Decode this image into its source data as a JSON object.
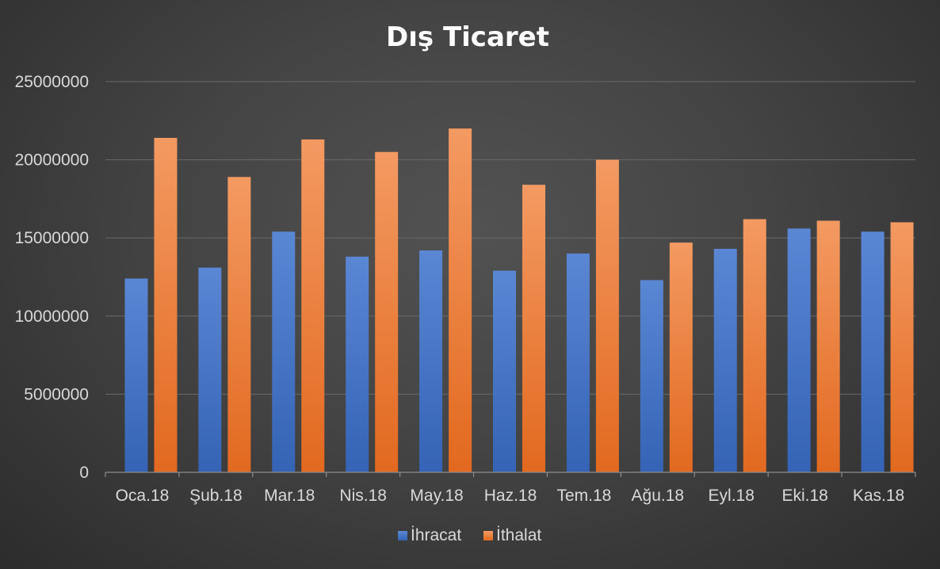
{
  "chart_data": {
    "type": "bar",
    "title": "Dış Ticaret",
    "xlabel": "",
    "ylabel": "",
    "categories": [
      "Oca.18",
      "Şub.18",
      "Mar.18",
      "Nis.18",
      "May.18",
      "Haz.18",
      "Tem.18",
      "Ağu.18",
      "Eyl.18",
      "Eki.18",
      "Kas.18"
    ],
    "series": [
      {
        "name": "İhracat",
        "color": "#4472c4",
        "values": [
          12400000,
          13100000,
          15400000,
          13800000,
          14200000,
          12900000,
          14000000,
          12300000,
          14300000,
          15600000,
          15400000
        ]
      },
      {
        "name": "İthalat",
        "color": "#ed7d31",
        "values": [
          21400000,
          18900000,
          21300000,
          20500000,
          22000000,
          18400000,
          20000000,
          14700000,
          16200000,
          16100000,
          16000000
        ]
      }
    ],
    "ylim": [
      0,
      25000000
    ],
    "yticks": [
      "0",
      "5000000",
      "10000000",
      "15000000",
      "20000000",
      "25000000"
    ],
    "grid": true,
    "legend_position": "bottom"
  }
}
